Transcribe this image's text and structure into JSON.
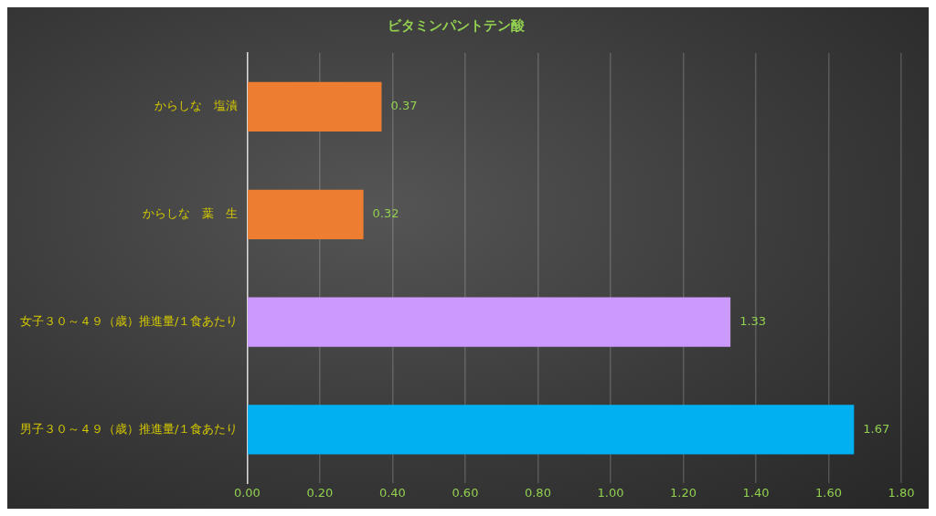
{
  "chart_data": {
    "type": "bar",
    "orientation": "horizontal",
    "title": "ビタミンパントテン酸",
    "categories": [
      "からしな　塩漬",
      "からしな　葉　生",
      "女子３０～４９（歳）推進量/１食あたり",
      "男子３０～４９（歳）推進量/１食あたり"
    ],
    "values": [
      0.37,
      0.32,
      1.33,
      1.67
    ],
    "colors": [
      "#ed7d31",
      "#ed7d31",
      "#cc99ff",
      "#00b0f0"
    ],
    "xlim": [
      0,
      1.8
    ],
    "xticks": [
      {
        "value": 0,
        "label": "0.00"
      },
      {
        "value": 0.2,
        "label": "0.20"
      },
      {
        "value": 0.4,
        "label": "0.40"
      },
      {
        "value": 0.6,
        "label": "0.60"
      },
      {
        "value": 0.8,
        "label": "0.80"
      },
      {
        "value": 1.0,
        "label": "1.00"
      },
      {
        "value": 1.2,
        "label": "1.20"
      },
      {
        "value": 1.4,
        "label": "1.40"
      },
      {
        "value": 1.6,
        "label": "1.60"
      },
      {
        "value": 1.8,
        "label": "1.80"
      }
    ],
    "grid": "x",
    "data_labels": true,
    "legend": false
  }
}
